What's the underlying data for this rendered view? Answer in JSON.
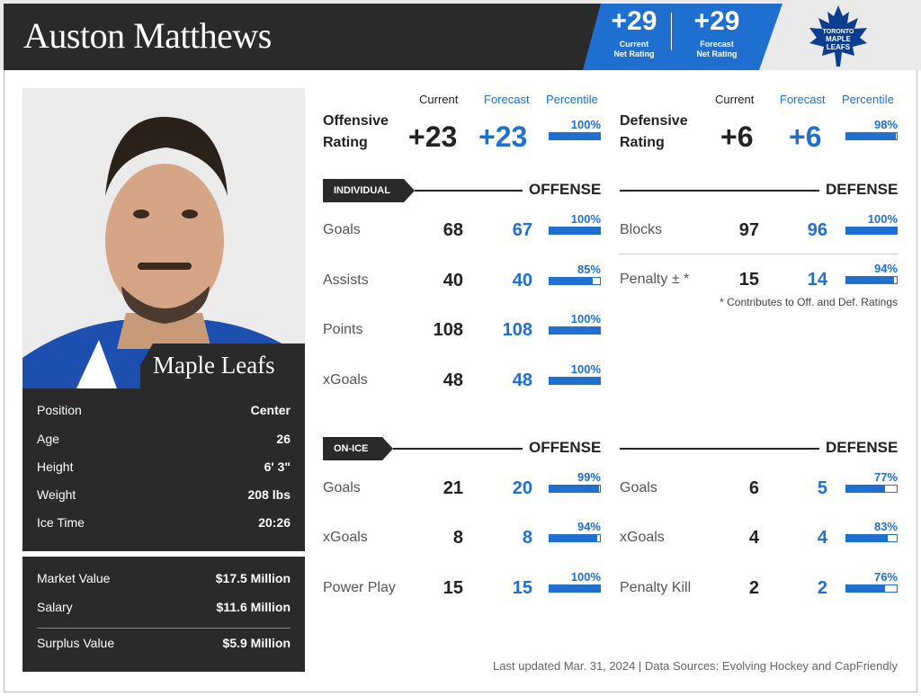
{
  "header": {
    "player_name": "Auston Matthews",
    "current_net_rating": "+29",
    "current_net_rating_label": "Current Net Rating",
    "forecast_net_rating": "+29",
    "forecast_net_rating_label": "Forecast Net Rating",
    "logo_text": [
      "TORONTO",
      "MAPLE",
      "LEAFS"
    ]
  },
  "profile": {
    "team": "Maple Leafs",
    "bio": [
      {
        "label": "Position",
        "value": "Center"
      },
      {
        "label": "Age",
        "value": "26"
      },
      {
        "label": "Height",
        "value": "6' 3\""
      },
      {
        "label": "Weight",
        "value": "208 lbs"
      },
      {
        "label": "Ice Time",
        "value": "20:26"
      }
    ],
    "contract": [
      {
        "label": "Market Value",
        "value": "$17.5 Million"
      },
      {
        "label": "Salary",
        "value": "$11.6 Million"
      },
      {
        "label": "Surplus Value",
        "value": "$5.9 Million"
      }
    ]
  },
  "column_headers": {
    "current": "Current",
    "forecast": "Forecast",
    "percentile": "Percentile"
  },
  "offensive_rating": {
    "label_line1": "Offensive",
    "label_line2": "Rating",
    "current": "+23",
    "forecast": "+23",
    "percentile": "100%",
    "pct_value": 100
  },
  "defensive_rating": {
    "label_line1": "Defensive",
    "label_line2": "Rating",
    "current": "+6",
    "forecast": "+6",
    "percentile": "98%",
    "pct_value": 98
  },
  "individual": {
    "tag": "INDIVIDUAL",
    "offense_title": "OFFENSE",
    "defense_title": "DEFENSE",
    "offense_rows": [
      {
        "label": "Goals",
        "current": "68",
        "forecast": "67",
        "percentile": "100%",
        "pct_value": 100
      },
      {
        "label": "Assists",
        "current": "40",
        "forecast": "40",
        "percentile": "85%",
        "pct_value": 85
      },
      {
        "label": "Points",
        "current": "108",
        "forecast": "108",
        "percentile": "100%",
        "pct_value": 100
      },
      {
        "label": "xGoals",
        "current": "48",
        "forecast": "48",
        "percentile": "100%",
        "pct_value": 100
      }
    ],
    "defense_rows": [
      {
        "label": "Blocks",
        "current": "97",
        "forecast": "96",
        "percentile": "100%",
        "pct_value": 100
      },
      {
        "label": "Penalty ± *",
        "current": "15",
        "forecast": "14",
        "percentile": "94%",
        "pct_value": 94
      }
    ],
    "note": "* Contributes to Off. and Def. Ratings"
  },
  "on_ice": {
    "tag": "ON-ICE",
    "offense_title": "OFFENSE",
    "defense_title": "DEFENSE",
    "offense_rows": [
      {
        "label": "Goals",
        "current": "21",
        "forecast": "20",
        "percentile": "99%",
        "pct_value": 99
      },
      {
        "label": "xGoals",
        "current": "8",
        "forecast": "8",
        "percentile": "94%",
        "pct_value": 94
      },
      {
        "label": "Power Play",
        "current": "15",
        "forecast": "15",
        "percentile": "100%",
        "pct_value": 100
      }
    ],
    "defense_rows": [
      {
        "label": "Goals",
        "current": "6",
        "forecast": "5",
        "percentile": "77%",
        "pct_value": 77
      },
      {
        "label": "xGoals",
        "current": "4",
        "forecast": "4",
        "percentile": "83%",
        "pct_value": 83
      },
      {
        "label": "Penalty Kill",
        "current": "2",
        "forecast": "2",
        "percentile": "76%",
        "pct_value": 76
      }
    ]
  },
  "footer": "Last updated Mar. 31, 2024 | Data Sources: Evolving Hockey and CapFriendly",
  "colors": {
    "accent": "#1f6fd1",
    "dark": "#2a2a2a"
  }
}
